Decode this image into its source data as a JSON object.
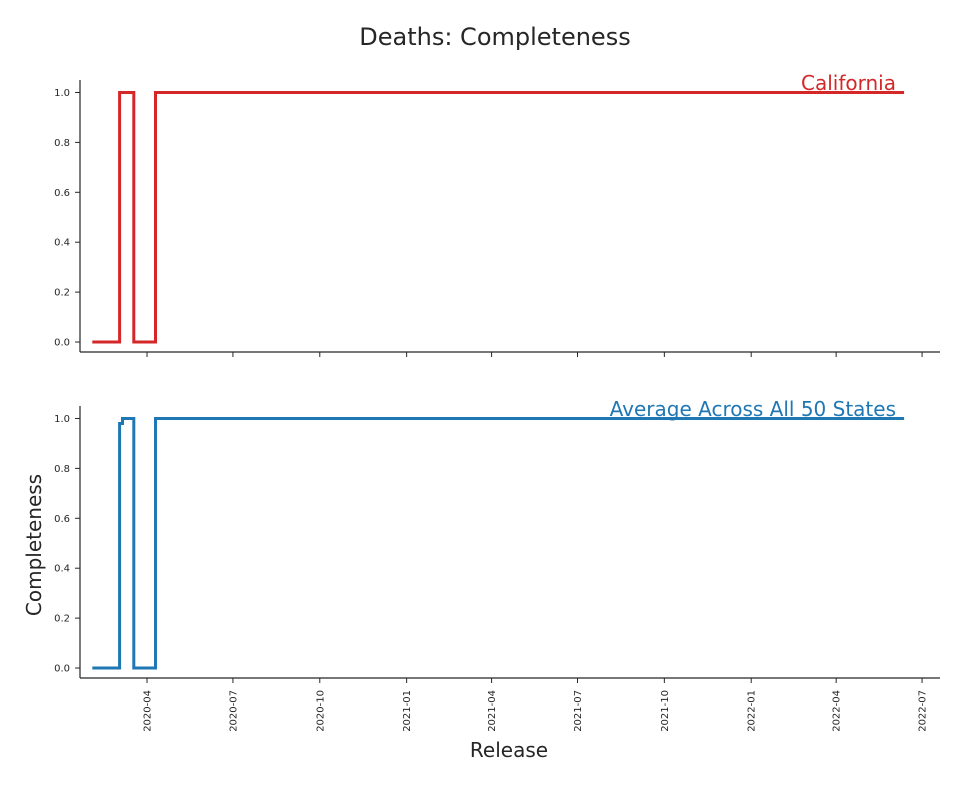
{
  "chart_data": {
    "type": "line",
    "title": "Deaths: Completeness",
    "xlabel": "Release",
    "ylabel": "Completeness",
    "grid": false,
    "xlim": [
      "2020-01-21",
      "2022-07-20"
    ],
    "x_ticks": [
      "2020-04-01",
      "2020-07-01",
      "2020-10-01",
      "2021-01-01",
      "2021-04-01",
      "2021-07-01",
      "2021-10-01",
      "2022-01-01",
      "2022-04-01",
      "2022-07-01"
    ],
    "x_tick_labels": [
      "2020-04",
      "2020-07",
      "2020-10",
      "2021-01",
      "2021-04",
      "2021-07",
      "2021-10",
      "2022-01",
      "2022-04",
      "2022-07"
    ],
    "panels": [
      {
        "label": "California",
        "color": "#d62728",
        "ylim": [
          -0.04,
          1.05
        ],
        "y_ticks": [
          0.0,
          0.2,
          0.4,
          0.6,
          0.8,
          1.0
        ],
        "y_tick_labels": [
          "0.0",
          "0.2",
          "0.4",
          "0.6",
          "0.8",
          "1.0"
        ],
        "x": [
          "2020-02-03",
          "2020-03-03",
          "2020-03-03",
          "2020-03-18",
          "2020-03-18",
          "2020-04-10",
          "2020-04-10",
          "2022-06-12"
        ],
        "y": [
          0.0,
          0.0,
          1.0,
          1.0,
          0.0,
          0.0,
          1.0,
          1.0
        ]
      },
      {
        "label": "Average Across All 50 States",
        "color": "#1f77b4",
        "ylim": [
          -0.04,
          1.05
        ],
        "y_ticks": [
          0.0,
          0.2,
          0.4,
          0.6,
          0.8,
          1.0
        ],
        "y_tick_labels": [
          "0.0",
          "0.2",
          "0.4",
          "0.6",
          "0.8",
          "1.0"
        ],
        "x": [
          "2020-02-03",
          "2020-03-03",
          "2020-03-03",
          "2020-03-06",
          "2020-03-06",
          "2020-03-18",
          "2020-03-18",
          "2020-04-10",
          "2020-04-10",
          "2022-06-12"
        ],
        "y": [
          0.0,
          0.0,
          0.98,
          0.98,
          1.0,
          1.0,
          0.0,
          0.0,
          1.0,
          1.0
        ]
      }
    ]
  }
}
